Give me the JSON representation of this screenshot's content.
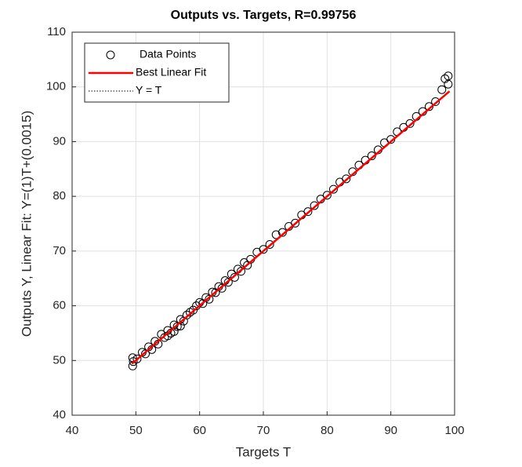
{
  "chart_data": {
    "type": "scatter",
    "title": "Outputs vs. Targets, R=0.99756",
    "x_label": "Targets T",
    "y_label": "Outputs Y,  Linear Fit: Y=(1)T+(0.0015)",
    "xlim": [
      40,
      100
    ],
    "ylim": [
      40,
      110
    ],
    "xticks": [
      40,
      50,
      60,
      70,
      80,
      90,
      100
    ],
    "yticks": [
      40,
      50,
      60,
      70,
      80,
      90,
      100,
      110
    ],
    "grid": true,
    "legend_position": "upper-left",
    "series": [
      {
        "name": "Data Points",
        "color": "#000000",
        "style": "markers",
        "x": [
          49.5,
          49.5,
          49.6,
          50.2,
          51,
          51.5,
          52,
          52.5,
          53,
          53.5,
          54,
          54.5,
          55,
          55,
          55.5,
          56,
          56,
          56.5,
          57,
          57,
          57.5,
          58,
          58.5,
          59,
          59.5,
          60,
          60.5,
          61,
          61.5,
          62,
          62.5,
          63,
          63.5,
          64,
          64.5,
          65,
          65.5,
          66,
          66.5,
          67,
          67.5,
          68,
          69,
          70,
          71,
          72,
          73,
          74,
          75,
          76,
          77,
          78,
          79,
          80,
          81,
          82,
          83,
          84,
          85,
          86,
          87,
          88,
          89,
          90,
          91,
          92,
          93,
          94,
          95,
          96,
          97,
          98,
          98.5,
          99,
          99
        ],
        "y": [
          49.0,
          50.5,
          49.8,
          50.3,
          51.5,
          51.2,
          52.5,
          52.0,
          53.5,
          53.0,
          54.8,
          54.2,
          55.5,
          54.5,
          55.0,
          56.5,
          55.3,
          56.2,
          57.5,
          56.3,
          57.2,
          58.3,
          58.8,
          59.2,
          60,
          60.6,
          60.4,
          61.5,
          61.2,
          62.5,
          62.4,
          63.5,
          63.2,
          64.6,
          64.3,
          65.8,
          65.2,
          66.7,
          66.3,
          67.9,
          67.4,
          68.5,
          69.8,
          70.3,
          71.2,
          73.0,
          73.4,
          74.5,
          75.1,
          76.6,
          77.2,
          78.3,
          79.5,
          80.2,
          81.3,
          82.6,
          83.2,
          84.5,
          85.7,
          86.6,
          87.4,
          88.5,
          89.8,
          90.4,
          91.8,
          92.6,
          93.3,
          94.6,
          95.5,
          96.4,
          97.3,
          99.5,
          101.5,
          102.0,
          100.5
        ]
      },
      {
        "name": "Best Linear Fit",
        "color": "#ff0000",
        "style": "solid",
        "x": [
          49.4,
          99.2
        ],
        "y": [
          49.4,
          99.2
        ]
      },
      {
        "name": "Y = T",
        "color": "#000000",
        "style": "dotted",
        "x": [
          49.4,
          99.2
        ],
        "y": [
          49.4,
          99.2
        ]
      }
    ]
  }
}
